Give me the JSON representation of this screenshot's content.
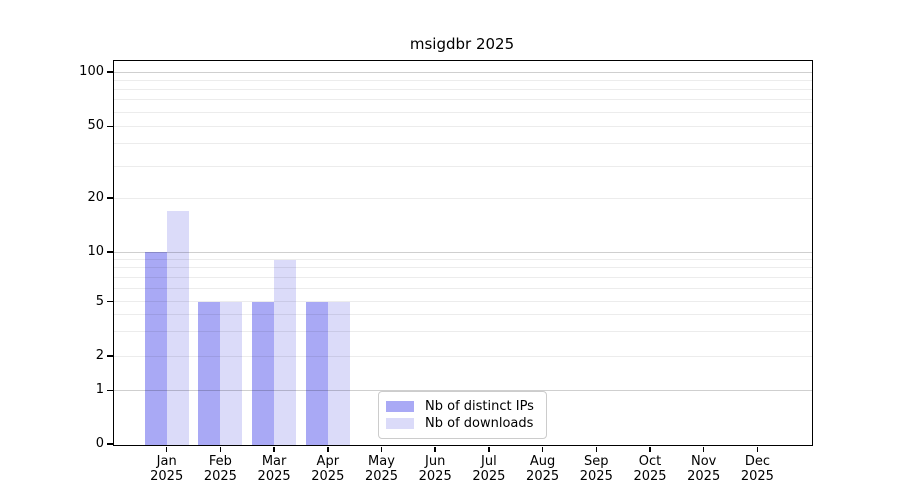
{
  "figure": {
    "title": "msigdbr 2025"
  },
  "chart_data": {
    "type": "bar",
    "title": "msigdbr 2025",
    "categories": [
      "Jan",
      "Feb",
      "Mar",
      "Apr",
      "May",
      "Jun",
      "Jul",
      "Aug",
      "Sep",
      "Oct",
      "Nov",
      "Dec"
    ],
    "x_tick_year": "2025",
    "series": [
      {
        "name": "Nb of distinct IPs",
        "color": "#a9a9f5",
        "values": [
          10,
          5,
          5,
          5,
          0,
          0,
          0,
          0,
          0,
          0,
          0,
          0
        ]
      },
      {
        "name": "Nb of downloads",
        "color": "#dbdbf9",
        "values": [
          17,
          5,
          9,
          5,
          0,
          0,
          0,
          0,
          0,
          0,
          0,
          0
        ]
      }
    ],
    "xlabel": "",
    "ylabel": "",
    "y_axis": {
      "tick_values": [
        0,
        1,
        2,
        5,
        10,
        20,
        50,
        100
      ],
      "tick_labels": [
        "0",
        "1",
        "2",
        "5",
        "10",
        "20",
        "50",
        "100"
      ],
      "scale": "log-like-with-zero-baseline",
      "ylim": [
        0,
        100
      ]
    },
    "grid": {
      "on": true,
      "major_lines": [
        1,
        10,
        100
      ],
      "minor_lines": [
        2,
        3,
        4,
        5,
        6,
        7,
        8,
        9,
        20,
        30,
        40,
        50,
        60,
        70,
        80,
        90
      ]
    },
    "legend": {
      "position": "inside-bottom-center",
      "entries": [
        "Nb of distinct IPs",
        "Nb of downloads"
      ]
    }
  }
}
